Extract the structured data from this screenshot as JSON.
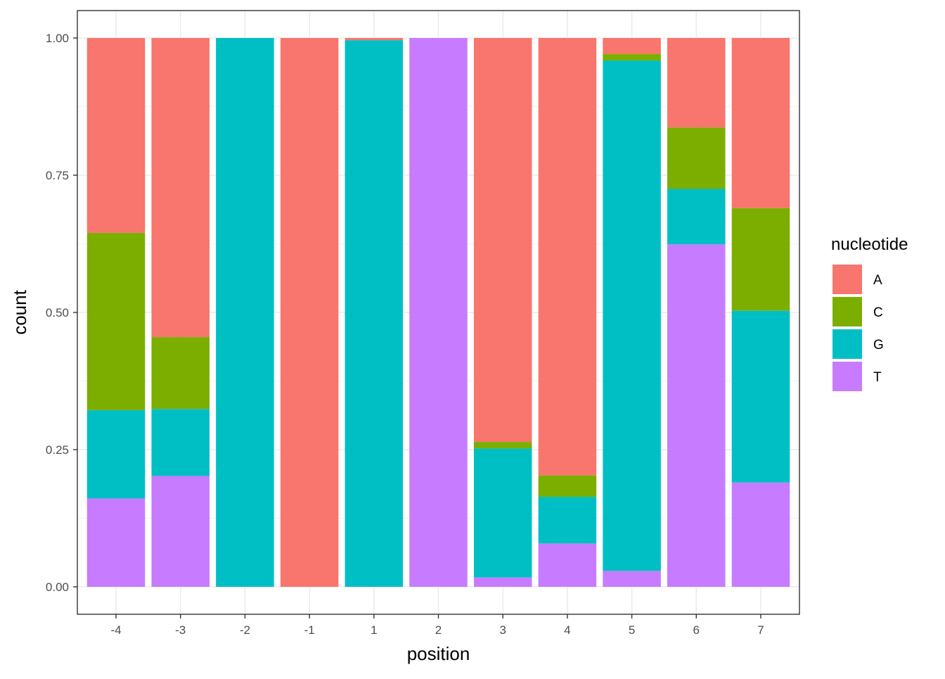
{
  "chart_data": {
    "type": "bar",
    "stacked": true,
    "normalized": true,
    "title": "",
    "xlabel": "position",
    "ylabel": "count",
    "ylim": [
      -0.05,
      1.05
    ],
    "yticks": [
      0.0,
      0.25,
      0.5,
      0.75,
      1.0
    ],
    "ytick_labels": [
      "0.00",
      "0.25",
      "0.50",
      "0.75",
      "1.00"
    ],
    "categories": [
      "-4",
      "-3",
      "-2",
      "-1",
      "1",
      "2",
      "3",
      "4",
      "5",
      "6",
      "7"
    ],
    "stack_order_bottom_to_top": [
      "T",
      "G",
      "C",
      "A"
    ],
    "series": [
      {
        "name": "A",
        "color": "#F8766D",
        "values": [
          0.355,
          0.545,
          0.0,
          1.0,
          0.004,
          0.0,
          0.736,
          0.797,
          0.029,
          0.163,
          0.31
        ]
      },
      {
        "name": "C",
        "color": "#7CAE00",
        "values": [
          0.323,
          0.131,
          0.0,
          0.0,
          0.0,
          0.0,
          0.012,
          0.039,
          0.012,
          0.112,
          0.187
        ]
      },
      {
        "name": "G",
        "color": "#00BFC4",
        "values": [
          0.161,
          0.122,
          1.0,
          0.0,
          0.996,
          0.0,
          0.235,
          0.085,
          0.93,
          0.101,
          0.313
        ]
      },
      {
        "name": "T",
        "color": "#C77CFF",
        "values": [
          0.161,
          0.202,
          0.0,
          0.0,
          0.0,
          1.0,
          0.017,
          0.079,
          0.029,
          0.624,
          0.19
        ]
      }
    ],
    "grid": true,
    "legend": {
      "title": "nucleotide",
      "position": "right",
      "entries": [
        "A",
        "C",
        "G",
        "T"
      ]
    }
  }
}
